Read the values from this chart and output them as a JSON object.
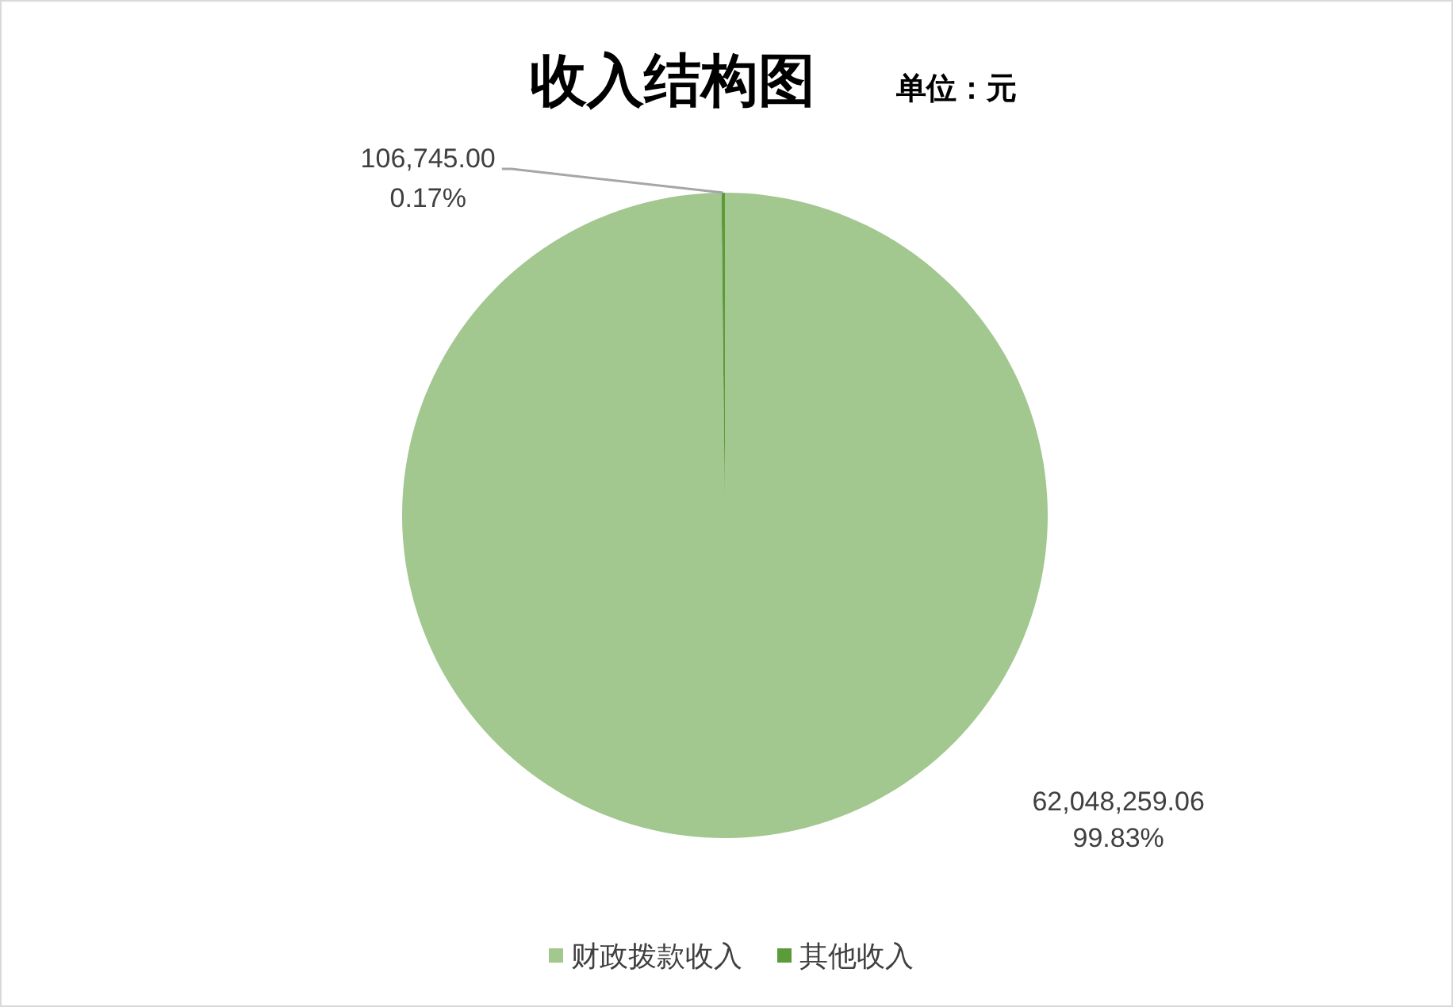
{
  "chart_data": {
    "type": "pie",
    "title": "收入结构图",
    "subtitle": "单位：元",
    "categories": [
      "财政拨款收入",
      "其他收入"
    ],
    "values": [
      62048259.06,
      106745.0
    ],
    "colors": [
      "#a2c78f",
      "#5b9b3a"
    ],
    "value_labels": [
      "62,048,259.06\n99.83%",
      "106,745.00\n0.17%"
    ],
    "legend": "bottom"
  }
}
